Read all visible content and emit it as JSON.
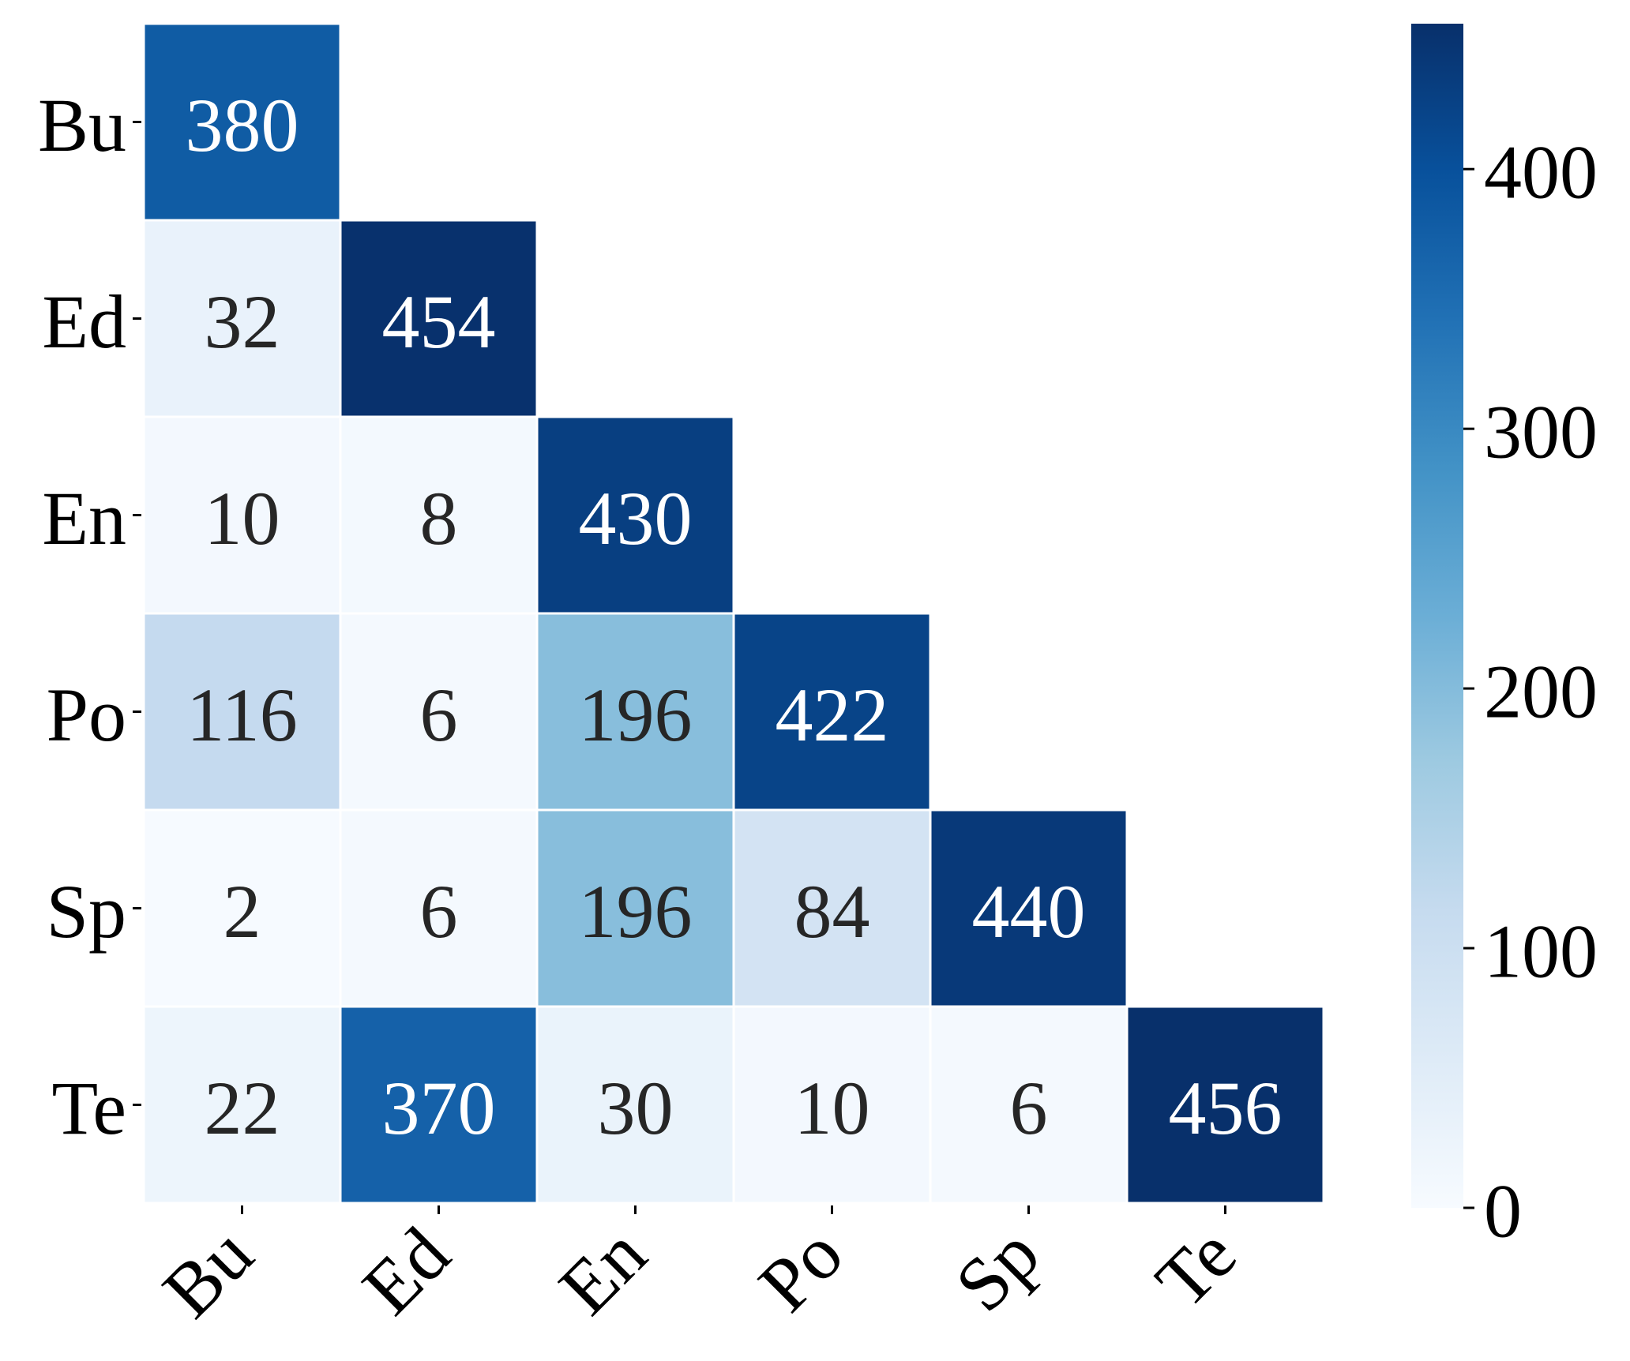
{
  "chart_data": {
    "type": "heatmap",
    "title": "",
    "xlabel": "",
    "ylabel": "",
    "categories": [
      "Bu",
      "Ed",
      "En",
      "Po",
      "Sp",
      "Te"
    ],
    "matrix": [
      [
        380,
        null,
        null,
        null,
        null,
        null
      ],
      [
        32,
        454,
        null,
        null,
        null,
        null
      ],
      [
        10,
        8,
        430,
        null,
        null,
        null
      ],
      [
        116,
        6,
        196,
        422,
        null,
        null
      ],
      [
        2,
        6,
        196,
        84,
        440,
        null
      ],
      [
        22,
        370,
        30,
        10,
        6,
        456
      ]
    ],
    "mask": "upper-triangle",
    "colormap": "Blues",
    "vmin": 0,
    "vmax": 456,
    "colorbar_ticks": [
      0,
      100,
      200,
      300,
      400
    ],
    "colorbar_tick_labels": [
      "0",
      "100",
      "200",
      "300",
      "400"
    ],
    "cell_separator_color": "#ffffff"
  }
}
